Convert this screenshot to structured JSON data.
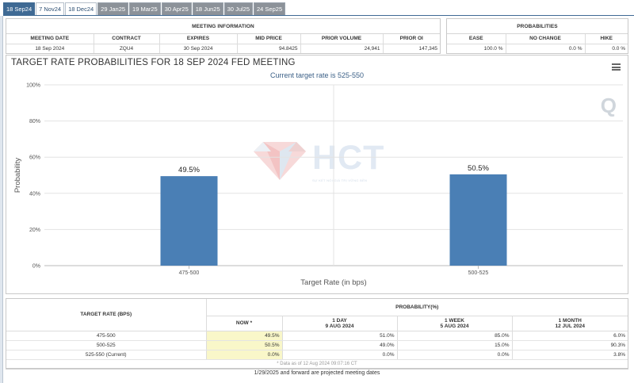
{
  "tabs": [
    {
      "label": "18 Sep24",
      "state": "active"
    },
    {
      "label": "7 Nov24",
      "state": "light"
    },
    {
      "label": "18 Dec24",
      "state": "light"
    },
    {
      "label": "29 Jan25",
      "state": "grey"
    },
    {
      "label": "19 Mar25",
      "state": "grey"
    },
    {
      "label": "30 Apr25",
      "state": "grey"
    },
    {
      "label": "18 Jun25",
      "state": "grey"
    },
    {
      "label": "30 Jul25",
      "state": "grey"
    },
    {
      "label": "24 Sep25",
      "state": "grey"
    }
  ],
  "meeting_info": {
    "header": "MEETING INFORMATION",
    "columns": [
      "MEETING DATE",
      "CONTRACT",
      "EXPIRES",
      "MID PRICE",
      "PRIOR VOLUME",
      "PRIOR OI"
    ],
    "row": [
      "18 Sep 2024",
      "ZQU4",
      "30 Sep 2024",
      "94.8425",
      "24,941",
      "147,345"
    ]
  },
  "probabilities": {
    "header": "PROBABILITIES",
    "columns": [
      "EASE",
      "NO CHANGE",
      "HIKE"
    ],
    "row": [
      "100.0 %",
      "0.0 %",
      "0.0 %"
    ]
  },
  "chart_panel": {
    "title": "TARGET RATE PROBABILITIES FOR 18 SEP 2024 FED MEETING",
    "watermark_text": "HCT",
    "watermark_subtext": "SỰ KẾT NỐI GIÁ TRỊ VỮNG BỀN"
  },
  "chart_data": {
    "type": "bar",
    "title": "",
    "subtitle": "Current target rate is 525-550",
    "categories": [
      "475-500",
      "500-525"
    ],
    "values": [
      49.5,
      50.5
    ],
    "data_labels": [
      "49.5%",
      "50.5%"
    ],
    "xlabel": "Target Rate (in bps)",
    "ylabel": "Probability",
    "ylim": [
      0,
      100
    ],
    "yticks": [
      0,
      20,
      40,
      60,
      80,
      100
    ],
    "ytick_labels": [
      "0%",
      "20%",
      "40%",
      "60%",
      "80%",
      "100%"
    ],
    "grid": true,
    "bar_color": "#4a7fb5"
  },
  "prob_table": {
    "col_target": "TARGET RATE (BPS)",
    "col_prob": "PROBABILITY(%)",
    "sub_headers": [
      {
        "line1": "NOW *",
        "line2": ""
      },
      {
        "line1": "1 DAY",
        "line2": "9 AUG 2024"
      },
      {
        "line1": "1 WEEK",
        "line2": "5 AUG 2024"
      },
      {
        "line1": "1 MONTH",
        "line2": "12 JUL 2024"
      }
    ],
    "rows": [
      {
        "rate": "475-500",
        "now": "49.5%",
        "day": "51.0%",
        "week": "85.0%",
        "month": "6.0%"
      },
      {
        "rate": "500-525",
        "now": "50.5%",
        "day": "49.0%",
        "week": "15.0%",
        "month": "90.3%"
      },
      {
        "rate": "525-550 (Current)",
        "now": "0.0%",
        "day": "0.0%",
        "week": "0.0%",
        "month": "3.8%"
      }
    ],
    "note": "* Data as of 12 Aug 2024 09:07:16 CT"
  },
  "footnote": "1/29/2025 and forward are projected meeting dates"
}
